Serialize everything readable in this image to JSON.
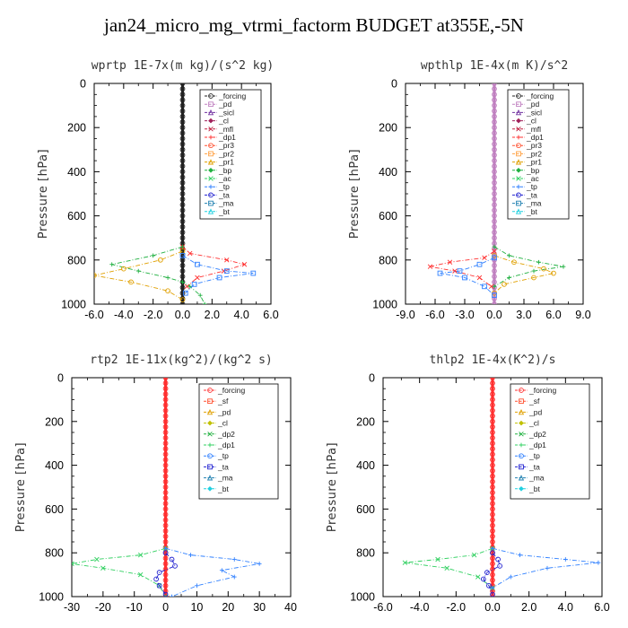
{
  "title": "jan24_micro_mg_vtrmi_factorm  BUDGET at355E,-5N",
  "chart_data": [
    {
      "type": "line",
      "title": "wprtp  1E-7x(m kg)/(s^2 kg)",
      "ylabel": "Pressure [hPa]",
      "ylim": [
        1000,
        0
      ],
      "y_ticks": [
        "0",
        "200",
        "400",
        "600",
        "800",
        "1000"
      ],
      "xlim": [
        -6.0,
        6.0
      ],
      "x_ticks": [
        "-6.0",
        "-4.0",
        "-2.0",
        "0.0",
        "2.0",
        "4.0",
        "6.0"
      ],
      "legend": [
        "_forcing",
        "_pd",
        "_sicl",
        "_cl",
        "_mfl",
        "_dp1",
        "_pr3",
        "_pr2",
        "_pr1",
        "_bp",
        "_ac",
        "_tp",
        "_ta",
        "_ma",
        "_bt"
      ],
      "legend_colors": [
        "#222222",
        "#c080c0",
        "#7030a0",
        "#a0205a",
        "#c02040",
        "#ff3030",
        "#ff5030",
        "#ffa040",
        "#e0a000",
        "#20b040",
        "#30d060",
        "#3080ff",
        "#2020d0",
        "#2080b0",
        "#20d0e0"
      ],
      "series": [
        {
          "name": "_forcing",
          "color": "#222222",
          "x": [
            0,
            0,
            0,
            0,
            0,
            0,
            0,
            0,
            0,
            0,
            0
          ],
          "y": [
            0,
            100,
            200,
            300,
            400,
            500,
            600,
            700,
            800,
            900,
            1000
          ]
        },
        {
          "name": "_pr3",
          "color": "#ff3030",
          "x": [
            0,
            0.5,
            3.0,
            4.2,
            2.8,
            1.0,
            0.3
          ],
          "y": [
            740,
            770,
            800,
            820,
            850,
            880,
            920
          ]
        },
        {
          "name": "_bp",
          "color": "#20b040",
          "x": [
            0,
            -2.0,
            -4.8,
            -3.0,
            -1.0,
            0,
            0.5,
            1.2,
            1.5
          ],
          "y": [
            740,
            780,
            820,
            850,
            880,
            900,
            920,
            960,
            1000
          ]
        },
        {
          "name": "_pr1",
          "color": "#e0a000",
          "x": [
            0,
            -1.5,
            -4.0,
            -6.0,
            -3.5,
            -1.0,
            0
          ],
          "y": [
            760,
            800,
            840,
            870,
            900,
            940,
            980
          ]
        },
        {
          "name": "_tp",
          "color": "#3080ff",
          "x": [
            0,
            1.0,
            3.0,
            4.8,
            2.5,
            0.8,
            0.2
          ],
          "y": [
            780,
            820,
            850,
            860,
            880,
            910,
            950
          ]
        }
      ]
    },
    {
      "type": "line",
      "title": "wpthlp  1E-4x(m K)/s^2",
      "ylabel": "Pressure [hPa]",
      "ylim": [
        1000,
        0
      ],
      "y_ticks": [
        "0",
        "200",
        "400",
        "600",
        "800",
        "1000"
      ],
      "xlim": [
        -9.0,
        9.0
      ],
      "x_ticks": [
        "-9.0",
        "-6.0",
        "-3.0",
        "0.0",
        "3.0",
        "6.0",
        "9.0"
      ],
      "legend": [
        "_forcing",
        "_pd",
        "_sicl",
        "_cl",
        "_mfl",
        "_dp1",
        "_pr3",
        "_pr2",
        "_pr1",
        "_bp",
        "_ac",
        "_tp",
        "_ta",
        "_ma",
        "_bt"
      ],
      "legend_colors": [
        "#222222",
        "#c080c0",
        "#7030a0",
        "#a0205a",
        "#c02040",
        "#ff3030",
        "#ff5030",
        "#ffa040",
        "#e0a000",
        "#20b040",
        "#30d060",
        "#3080ff",
        "#2020d0",
        "#2080b0",
        "#20d0e0"
      ],
      "series": [
        {
          "name": "_pd",
          "color": "#c080c0",
          "x": [
            0,
            0,
            0,
            0,
            0,
            0,
            0,
            0,
            0,
            0,
            0
          ],
          "y": [
            0,
            100,
            200,
            300,
            400,
            500,
            600,
            700,
            800,
            900,
            1000
          ]
        },
        {
          "name": "_pr3",
          "color": "#ff3030",
          "x": [
            0,
            -1.0,
            -4.5,
            -6.5,
            -4.0,
            -1.5,
            -0.3
          ],
          "y": [
            760,
            790,
            810,
            830,
            850,
            880,
            920
          ]
        },
        {
          "name": "_bp",
          "color": "#20b040",
          "x": [
            0,
            1.5,
            4.5,
            7.0,
            4.0,
            1.5,
            0
          ],
          "y": [
            740,
            780,
            810,
            830,
            850,
            880,
            920
          ]
        },
        {
          "name": "_pr1",
          "color": "#e0a000",
          "x": [
            0,
            2.0,
            5.0,
            6.0,
            4.0,
            1.0,
            0
          ],
          "y": [
            780,
            810,
            840,
            860,
            880,
            910,
            950
          ]
        },
        {
          "name": "_tp",
          "color": "#3080ff",
          "x": [
            0,
            -1.5,
            -3.5,
            -5.5,
            -3.0,
            -1.0,
            0
          ],
          "y": [
            790,
            820,
            850,
            860,
            880,
            920,
            960
          ]
        }
      ]
    },
    {
      "type": "line",
      "title": "rtp2  1E-11x(kg^2)/(kg^2 s)",
      "ylabel": "Pressure [hPa]",
      "ylim": [
        1000,
        0
      ],
      "y_ticks": [
        "0",
        "200",
        "400",
        "600",
        "800",
        "1000"
      ],
      "xlim": [
        -30,
        40
      ],
      "x_ticks": [
        "-30",
        "-20",
        "-10",
        "0",
        "10",
        "20",
        "30",
        "40"
      ],
      "legend": [
        "_forcing",
        "_sf",
        "_pd",
        "_cl",
        "_dp2",
        "_dp1",
        "_tp",
        "_ta",
        "_ma",
        "_bt"
      ],
      "legend_colors": [
        "#ff3030",
        "#ff5030",
        "#e0a000",
        "#c0c000",
        "#20b040",
        "#30d060",
        "#3080ff",
        "#2020d0",
        "#2080b0",
        "#20d0e0"
      ],
      "series": [
        {
          "name": "_forcing",
          "color": "#ff3030",
          "x": [
            0,
            0,
            0,
            0,
            0,
            0,
            0,
            0,
            0,
            0,
            0
          ],
          "y": [
            0,
            100,
            200,
            300,
            400,
            500,
            600,
            700,
            800,
            900,
            1000
          ]
        },
        {
          "name": "_dp1",
          "color": "#30d060",
          "x": [
            0,
            -8,
            -22,
            -30,
            -20,
            -8,
            -2,
            0
          ],
          "y": [
            780,
            810,
            830,
            850,
            870,
            900,
            950,
            1000
          ]
        },
        {
          "name": "_tp",
          "color": "#3080ff",
          "x": [
            0,
            8,
            22,
            30,
            18,
            22,
            10,
            2
          ],
          "y": [
            780,
            810,
            830,
            850,
            880,
            910,
            950,
            1000
          ]
        },
        {
          "name": "_ta",
          "color": "#2020d0",
          "x": [
            0,
            2,
            3,
            -2,
            -3,
            -2,
            0
          ],
          "y": [
            800,
            830,
            860,
            890,
            920,
            950,
            990
          ]
        }
      ]
    },
    {
      "type": "line",
      "title": "thlp2  1E-4x(K^2)/s",
      "ylabel": "Pressure [hPa]",
      "ylim": [
        1000,
        0
      ],
      "y_ticks": [
        "0",
        "200",
        "400",
        "600",
        "800",
        "1000"
      ],
      "xlim": [
        -6.0,
        6.0
      ],
      "x_ticks": [
        "-6.0",
        "-4.0",
        "-2.0",
        "0.0",
        "2.0",
        "4.0",
        "6.0"
      ],
      "legend": [
        "_forcing",
        "_sf",
        "_pd",
        "_cl",
        "_dp2",
        "_dp1",
        "_tp",
        "_ta",
        "_ma",
        "_bt"
      ],
      "legend_colors": [
        "#ff3030",
        "#ff5030",
        "#e0a000",
        "#c0c000",
        "#20b040",
        "#30d060",
        "#3080ff",
        "#2020d0",
        "#2080b0",
        "#20d0e0"
      ],
      "series": [
        {
          "name": "_forcing",
          "color": "#ff3030",
          "x": [
            0,
            0,
            0,
            0,
            0,
            0,
            0,
            0,
            0,
            0,
            0
          ],
          "y": [
            0,
            100,
            200,
            300,
            400,
            500,
            600,
            700,
            800,
            900,
            1000
          ]
        },
        {
          "name": "_dp1",
          "color": "#30d060",
          "x": [
            0,
            -1.0,
            -3.0,
            -4.8,
            -2.5,
            -0.8,
            0
          ],
          "y": [
            780,
            810,
            830,
            845,
            870,
            910,
            960
          ]
        },
        {
          "name": "_tp",
          "color": "#3080ff",
          "x": [
            0,
            1.5,
            4.0,
            5.8,
            3.0,
            1.0,
            0
          ],
          "y": [
            780,
            810,
            830,
            845,
            870,
            910,
            960
          ]
        },
        {
          "name": "_ta",
          "color": "#2020d0",
          "x": [
            0,
            0.3,
            0.4,
            -0.3,
            -0.5,
            -0.2,
            0
          ],
          "y": [
            800,
            830,
            860,
            890,
            920,
            950,
            990
          ]
        }
      ]
    }
  ]
}
